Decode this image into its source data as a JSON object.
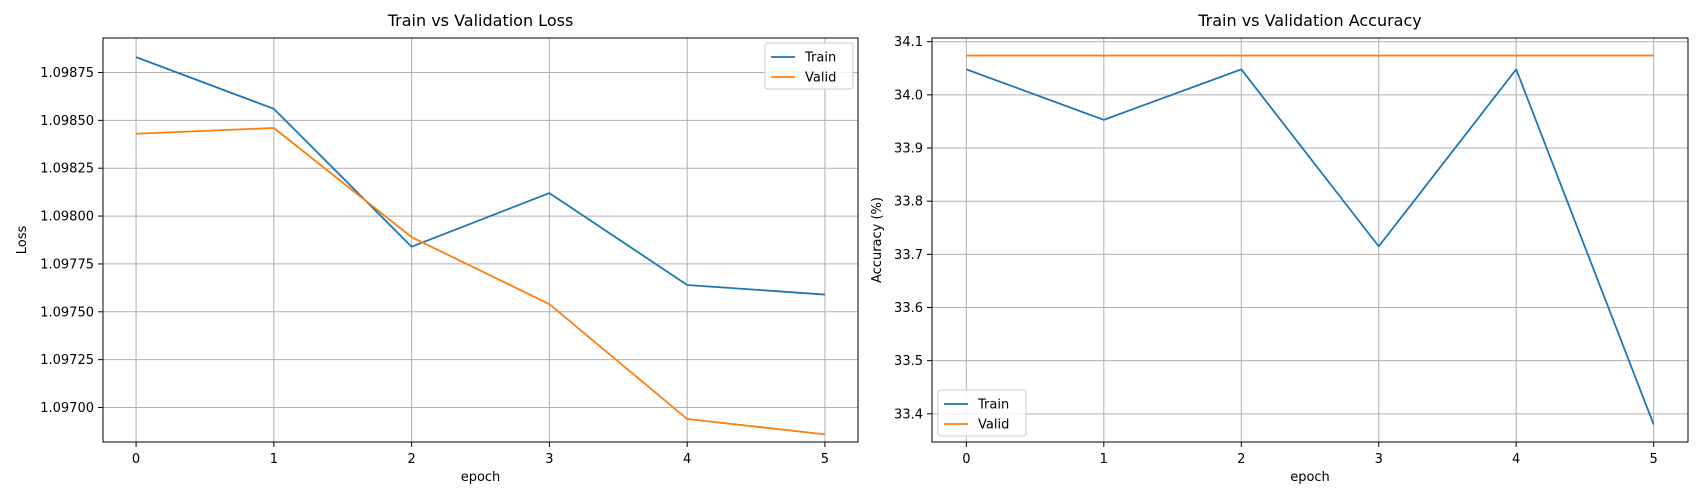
{
  "chart_data": [
    {
      "type": "line",
      "title": "Train vs Validation Loss",
      "xlabel": "epoch",
      "ylabel": "Loss",
      "x": [
        0,
        1,
        2,
        3,
        4,
        5
      ],
      "xticks": [
        "0",
        "1",
        "2",
        "3",
        "4",
        "5"
      ],
      "yticks": [
        "1.09700",
        "1.09725",
        "1.09750",
        "1.09775",
        "1.09800",
        "1.09825",
        "1.09850",
        "1.09875"
      ],
      "ylim": [
        1.09682,
        1.09893
      ],
      "xlim": [
        -0.24,
        5.24
      ],
      "grid": true,
      "legend": "top-right",
      "series": [
        {
          "name": "Train",
          "color": "#1f77b4",
          "values": [
            1.09883,
            1.09856,
            1.09784,
            1.09812,
            1.09764,
            1.09759
          ]
        },
        {
          "name": "Valid",
          "color": "#ff7f0e",
          "values": [
            1.09843,
            1.09846,
            1.09789,
            1.09754,
            1.09694,
            1.09686
          ]
        }
      ]
    },
    {
      "type": "line",
      "title": "Train vs Validation Accuracy",
      "xlabel": "epoch",
      "ylabel": "Accuracy (%)",
      "x": [
        0,
        1,
        2,
        3,
        4,
        5
      ],
      "xticks": [
        "0",
        "1",
        "2",
        "3",
        "4",
        "5"
      ],
      "yticks": [
        "33.4",
        "33.5",
        "33.6",
        "33.7",
        "33.8",
        "33.9",
        "34.0",
        "34.1"
      ],
      "ylim": [
        33.347,
        34.107
      ],
      "xlim": [
        -0.25,
        5.25
      ],
      "grid": true,
      "legend": "bottom-left",
      "series": [
        {
          "name": "Train",
          "color": "#1f77b4",
          "values": [
            34.048,
            33.953,
            34.048,
            33.715,
            34.048,
            33.38
          ]
        },
        {
          "name": "Valid",
          "color": "#ff7f0e",
          "values": [
            34.074,
            34.074,
            34.074,
            34.074,
            34.074,
            34.074
          ]
        }
      ]
    }
  ]
}
